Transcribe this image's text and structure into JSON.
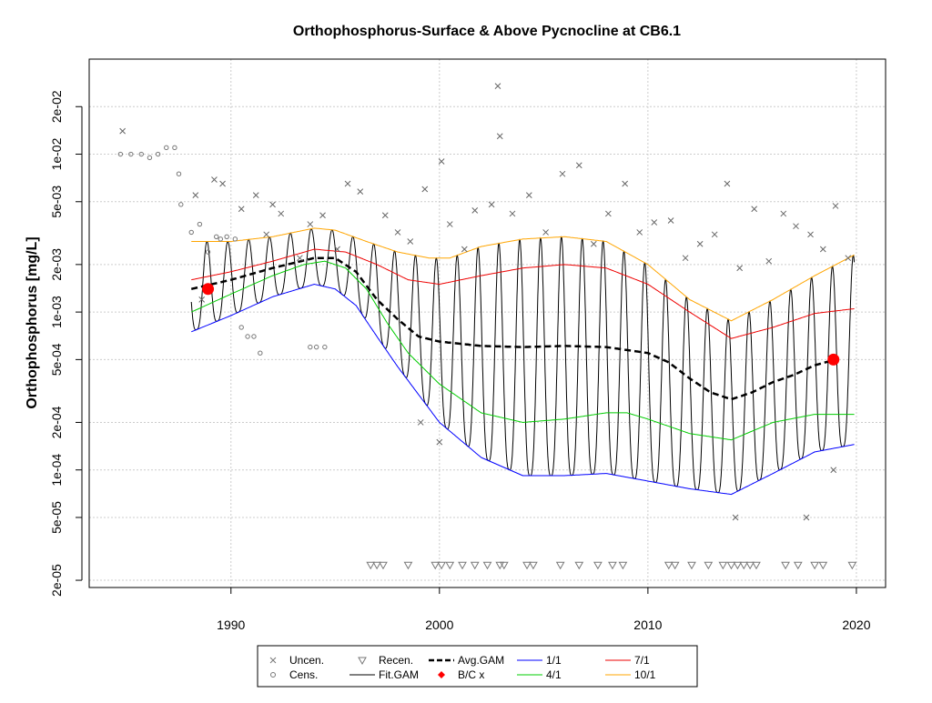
{
  "chart_data": {
    "type": "scatter",
    "title": "Orthophosphorus-Surface & Above Pycnocline at CB6.1",
    "xlabel": "",
    "ylabel": "Orthophosphorus [mg/L]",
    "y_scale": "log",
    "xlim": [
      1983.2,
      2021.4
    ],
    "ylim": [
      1.8e-05,
      0.04
    ],
    "x_ticks": [
      1990,
      2000,
      2010,
      2020
    ],
    "x_tick_labels": [
      "1990",
      "2000",
      "2010",
      "2020"
    ],
    "y_ticks": [
      2e-05,
      5e-05,
      0.0001,
      0.0002,
      0.0005,
      0.001,
      0.002,
      0.005,
      0.01,
      0.02
    ],
    "y_tick_labels": [
      "2e-05",
      "5e-05",
      "1e-04",
      "2e-04",
      "5e-04",
      "1e-03",
      "2e-03",
      "5e-03",
      "1e-02",
      "2e-02"
    ],
    "grid": true,
    "legend": {
      "placement": "bottom-center",
      "entries": [
        {
          "label": "Uncen.",
          "symbol": "x",
          "color": "#777777"
        },
        {
          "label": "Cens.",
          "symbol": "circle",
          "color": "#777777"
        },
        {
          "label": "Recen.",
          "symbol": "triangle-down",
          "color": "#777777"
        },
        {
          "label": "Fit.GAM",
          "symbol": "line",
          "color": "#000000"
        },
        {
          "label": "Avg.GAM",
          "symbol": "dashed-line",
          "color": "#000000"
        },
        {
          "label": "B/C x",
          "symbol": "diamond",
          "color": "#ff0000"
        },
        {
          "label": "1/1",
          "symbol": "line",
          "color": "#0000ff"
        },
        {
          "label": "4/1",
          "symbol": "line",
          "color": "#00cc00"
        },
        {
          "label": "7/1",
          "symbol": "line",
          "color": "#ee0000"
        },
        {
          "label": "10/1",
          "symbol": "line",
          "color": "#ffa500"
        }
      ]
    },
    "series": [
      {
        "name": "1/1",
        "color": "#0000ff",
        "x": [
          1988.1,
          1990,
          1992,
          1994,
          1995,
          1996,
          1997,
          1998,
          1999,
          2000,
          2002,
          2004,
          2006,
          2008,
          2010,
          2012,
          2014,
          2016,
          2018,
          2019.9
        ],
        "y": [
          0.00075,
          0.00095,
          0.00125,
          0.0015,
          0.0014,
          0.0011,
          0.0007,
          0.00045,
          0.0003,
          0.0002,
          0.00012,
          9.2e-05,
          9.2e-05,
          9.5e-05,
          8.5e-05,
          7.6e-05,
          7e-05,
          9.5e-05,
          0.00013,
          0.000145
        ]
      },
      {
        "name": "4/1",
        "color": "#00cc00",
        "x": [
          1988.1,
          1990,
          1992,
          1993.5,
          1994.5,
          1995.5,
          1996.5,
          1997.5,
          1998.5,
          2000,
          2002,
          2004,
          2006,
          2008,
          2009,
          2010,
          2012,
          2014,
          2016,
          2018,
          2019.9
        ],
        "y": [
          0.001,
          0.0013,
          0.0017,
          0.002,
          0.0021,
          0.0019,
          0.0014,
          0.00085,
          0.00055,
          0.00035,
          0.00023,
          0.0002,
          0.00021,
          0.00023,
          0.00023,
          0.00021,
          0.00017,
          0.000155,
          0.0002,
          0.000225,
          0.000225
        ]
      },
      {
        "name": "7/1",
        "color": "#ee0000",
        "x": [
          1988.1,
          1990,
          1992,
          1994,
          1995.5,
          1997,
          1998.5,
          2000,
          2002,
          2004,
          2006,
          2008,
          2010,
          2012,
          2014,
          2016,
          2018,
          2019.9
        ],
        "y": [
          0.0016,
          0.0018,
          0.0021,
          0.0025,
          0.0024,
          0.002,
          0.0016,
          0.0015,
          0.0017,
          0.0019,
          0.002,
          0.0019,
          0.0015,
          0.001,
          0.00068,
          0.0008,
          0.00098,
          0.00105
        ]
      },
      {
        "name": "10/1",
        "color": "#ffa500",
        "x": [
          1988.1,
          1990,
          1992,
          1994,
          1995,
          1996.5,
          1998,
          1999.5,
          2000.5,
          2002,
          2004,
          2006,
          2008,
          2010,
          2012,
          2014,
          2016,
          2018,
          2019.9
        ],
        "y": [
          0.0028,
          0.0028,
          0.003,
          0.0034,
          0.0033,
          0.0028,
          0.0024,
          0.0022,
          0.0022,
          0.0026,
          0.0029,
          0.003,
          0.0028,
          0.002,
          0.0012,
          0.00088,
          0.0012,
          0.0017,
          0.0023
        ]
      },
      {
        "name": "Avg.GAM",
        "color": "#000000",
        "dashed": true,
        "x": [
          1988.1,
          1990,
          1992,
          1994,
          1995,
          1996,
          1997,
          1998,
          1999,
          2000,
          2002,
          2004,
          2006,
          2008,
          2010,
          2011,
          2012,
          2013,
          2014,
          2015,
          2016,
          2017,
          2018,
          2019
        ],
        "y": [
          0.0014,
          0.0016,
          0.0019,
          0.0022,
          0.0022,
          0.0018,
          0.0012,
          0.0009,
          0.0007,
          0.00065,
          0.00061,
          0.0006,
          0.00061,
          0.0006,
          0.00055,
          0.00048,
          0.00038,
          0.00031,
          0.00028,
          0.00031,
          0.00036,
          0.0004,
          0.00046,
          0.0005
        ]
      },
      {
        "name": "B/C x",
        "color": "#ff0000",
        "marker": "point",
        "x": [
          1988.9,
          2018.9
        ],
        "y": [
          0.0014,
          0.0005
        ]
      }
    ],
    "cens_points": {
      "x": [
        1984.7,
        1985.2,
        1985.7,
        1986.1,
        1986.5,
        1986.9,
        1987.3,
        1987.5,
        1987.6,
        1988.1,
        1988.5,
        1988.9,
        1989.3,
        1989.5,
        1989.8,
        1990.2,
        1990.5,
        1990.8,
        1991.1,
        1991.4,
        1993.8,
        1994.1,
        1994.5
      ],
      "y": [
        0.01,
        0.01,
        0.01,
        0.0095,
        0.01,
        0.011,
        0.011,
        0.0075,
        0.0048,
        0.0032,
        0.0036,
        0.0024,
        0.003,
        0.0029,
        0.003,
        0.0029,
        0.0008,
        0.0007,
        0.0007,
        0.00055,
        0.0006,
        0.0006,
        0.0006
      ]
    },
    "uncen_points": {
      "x": [
        1984.8,
        1988.3,
        1988.6,
        1989.2,
        1989.6,
        1990.5,
        1991.2,
        1991.7,
        1992.0,
        1992.4,
        1993.3,
        1993.8,
        1994.4,
        1995.1,
        1995.6,
        1996.2,
        1997.4,
        1998.0,
        1998.6,
        1999.3,
        2000.1,
        2000.5,
        2001.2,
        2001.7,
        2002.5,
        2002.9,
        2003.5,
        2004.3,
        2005.1,
        2005.9,
        2006.7,
        2007.4,
        2008.1,
        2008.9,
        2009.6,
        2010.3,
        2011.1,
        2011.8,
        2012.5,
        2013.2,
        2013.8,
        2014.4,
        2015.1,
        2015.8,
        2016.5,
        2017.1,
        2017.8,
        2018.4,
        2019.0,
        2019.6,
        1999.1,
        2000.0,
        2002.8,
        2014.2,
        2017.6,
        2018.9
      ],
      "y": [
        0.014,
        0.0055,
        0.0012,
        0.0069,
        0.0065,
        0.0045,
        0.0055,
        0.0031,
        0.0048,
        0.0042,
        0.0022,
        0.0036,
        0.0041,
        0.0025,
        0.0065,
        0.0058,
        0.0041,
        0.0032,
        0.0028,
        0.006,
        0.009,
        0.0036,
        0.0025,
        0.0044,
        0.0048,
        0.013,
        0.0042,
        0.0055,
        0.0032,
        0.0075,
        0.0085,
        0.0027,
        0.0042,
        0.0065,
        0.0032,
        0.0037,
        0.0038,
        0.0022,
        0.0027,
        0.0031,
        0.0065,
        0.0019,
        0.0045,
        0.0021,
        0.0042,
        0.0035,
        0.0031,
        0.0025,
        0.0047,
        0.0022,
        0.0002,
        0.00015,
        0.027,
        5e-05,
        5e-05,
        0.0001
      ]
    },
    "recen_points": {
      "x": [
        1996.7,
        1997.0,
        1997.3,
        1998.5,
        1999.8,
        2000.1,
        2000.5,
        2001.1,
        2001.7,
        2002.3,
        2002.9,
        2003.1,
        2004.2,
        2004.5,
        2005.8,
        2006.7,
        2007.6,
        2008.3,
        2008.8,
        2011.0,
        2011.3,
        2012.1,
        2012.9,
        2013.6,
        2014.0,
        2014.3,
        2014.6,
        2014.9,
        2015.2,
        2016.6,
        2017.2,
        2018.0,
        2018.4,
        2019.8
      ],
      "y": [
        2.5e-05,
        2.5e-05,
        2.5e-05,
        2.5e-05,
        2.5e-05,
        2.5e-05,
        2.5e-05,
        2.5e-05,
        2.5e-05,
        2.5e-05,
        2.5e-05,
        2.5e-05,
        2.5e-05,
        2.5e-05,
        2.5e-05,
        2.5e-05,
        2.5e-05,
        2.5e-05,
        2.5e-05,
        2.5e-05,
        2.5e-05,
        2.5e-05,
        2.5e-05,
        2.5e-05,
        2.5e-05,
        2.5e-05,
        2.5e-05,
        2.5e-05,
        2.5e-05,
        2.5e-05,
        2.5e-05,
        2.5e-05,
        2.5e-05,
        2.5e-05
      ]
    },
    "fit_gam": {
      "x_start": 1988.1,
      "x_end": 2019.9,
      "note_period_years": 1,
      "peak_curve": "10/1",
      "trough_curve": "1/1"
    }
  }
}
